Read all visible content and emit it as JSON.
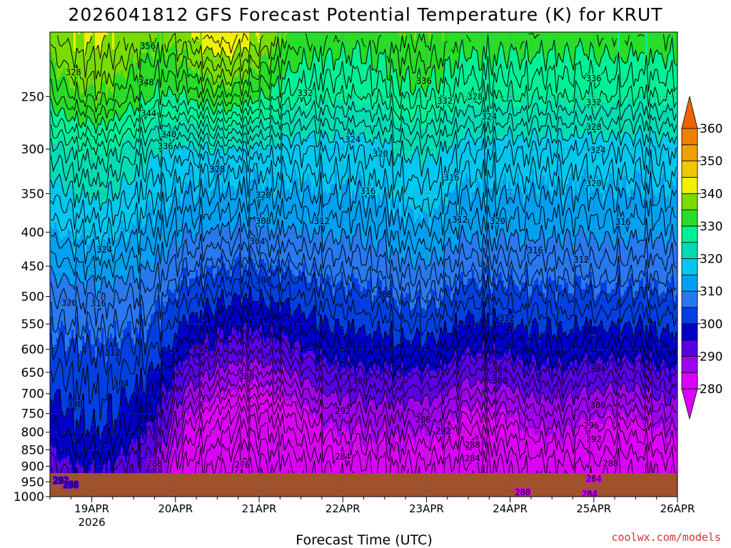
{
  "chart_data": {
    "type": "heatmap",
    "title": "2026041812 GFS Forecast Potential Temperature (K) for KRUT",
    "xlabel": "Forecast Time (UTC)",
    "ylabel": "",
    "credit": "coolwx.com/models",
    "x_ticks": [
      "19APR",
      "20APR",
      "21APR",
      "22APR",
      "23APR",
      "24APR",
      "25APR",
      "26APR"
    ],
    "x_year": "2026",
    "x_range_days": [
      18.5,
      26.0
    ],
    "y_ticks": [
      250,
      300,
      350,
      400,
      450,
      500,
      550,
      600,
      650,
      700,
      750,
      800,
      850,
      900,
      950,
      1000
    ],
    "y_range_hpa": [
      200,
      1000
    ],
    "colorbar": {
      "ticks": [
        360,
        350,
        340,
        330,
        320,
        310,
        300,
        290,
        280
      ],
      "bands": [
        {
          "lo": 280,
          "hi": 285,
          "color": "#dc00fa"
        },
        {
          "lo": 285,
          "hi": 290,
          "color": "#a000f0"
        },
        {
          "lo": 290,
          "hi": 295,
          "color": "#5a00e6"
        },
        {
          "lo": 295,
          "hi": 300,
          "color": "#0000c8"
        },
        {
          "lo": 300,
          "hi": 305,
          "color": "#0040e0"
        },
        {
          "lo": 305,
          "hi": 310,
          "color": "#2878f0"
        },
        {
          "lo": 310,
          "hi": 315,
          "color": "#00a0f0"
        },
        {
          "lo": 315,
          "hi": 320,
          "color": "#00c8f0"
        },
        {
          "lo": 320,
          "hi": 325,
          "color": "#00dcb4"
        },
        {
          "lo": 325,
          "hi": 330,
          "color": "#00f096"
        },
        {
          "lo": 330,
          "hi": 335,
          "color": "#28dc28"
        },
        {
          "lo": 335,
          "hi": 340,
          "color": "#78dc00"
        },
        {
          "lo": 340,
          "hi": 345,
          "color": "#f0f000"
        },
        {
          "lo": 345,
          "hi": 350,
          "color": "#f0c800"
        },
        {
          "lo": 350,
          "hi": 355,
          "color": "#f0a000"
        },
        {
          "lo": 355,
          "hi": 360,
          "color": "#f08000"
        }
      ],
      "under_color": "#dc00fa",
      "over_color": "#f06400"
    },
    "contour_interval_k": 2,
    "ground_color": "#a0522d",
    "contour_labels": [
      {
        "v": "356",
        "d": 19.67,
        "p": 210
      },
      {
        "v": "328",
        "d": 18.78,
        "p": 230
      },
      {
        "v": "348",
        "d": 19.65,
        "p": 238
      },
      {
        "v": "344",
        "d": 19.68,
        "p": 265
      },
      {
        "v": "340",
        "d": 19.92,
        "p": 285
      },
      {
        "v": "336",
        "d": 19.88,
        "p": 297
      },
      {
        "v": "332",
        "d": 21.55,
        "p": 247
      },
      {
        "v": "336",
        "d": 22.97,
        "p": 237
      },
      {
        "v": "332",
        "d": 23.22,
        "p": 254
      },
      {
        "v": "328",
        "d": 23.58,
        "p": 250
      },
      {
        "v": "324",
        "d": 23.75,
        "p": 268
      },
      {
        "v": "336",
        "d": 25.0,
        "p": 235
      },
      {
        "v": "332",
        "d": 25.0,
        "p": 255
      },
      {
        "v": "328",
        "d": 25.0,
        "p": 278
      },
      {
        "v": "324",
        "d": 25.05,
        "p": 301
      },
      {
        "v": "324",
        "d": 22.12,
        "p": 290
      },
      {
        "v": "320",
        "d": 22.45,
        "p": 305
      },
      {
        "v": "328",
        "d": 20.5,
        "p": 322
      },
      {
        "v": "316",
        "d": 22.3,
        "p": 347
      },
      {
        "v": "316",
        "d": 23.3,
        "p": 331
      },
      {
        "v": "320",
        "d": 21.05,
        "p": 352
      },
      {
        "v": "320",
        "d": 25.0,
        "p": 338
      },
      {
        "v": "308",
        "d": 21.05,
        "p": 385
      },
      {
        "v": "312",
        "d": 21.75,
        "p": 385
      },
      {
        "v": "312",
        "d": 23.4,
        "p": 383
      },
      {
        "v": "320",
        "d": 23.85,
        "p": 385
      },
      {
        "v": "316",
        "d": 25.35,
        "p": 386
      },
      {
        "v": "304",
        "d": 20.98,
        "p": 413
      },
      {
        "v": "324",
        "d": 19.15,
        "p": 425
      },
      {
        "v": "316",
        "d": 24.3,
        "p": 426
      },
      {
        "v": "312",
        "d": 24.85,
        "p": 440
      },
      {
        "v": "300",
        "d": 21.05,
        "p": 473
      },
      {
        "v": "308",
        "d": 22.5,
        "p": 497
      },
      {
        "v": "320",
        "d": 18.73,
        "p": 511
      },
      {
        "v": "316",
        "d": 19.08,
        "p": 512
      },
      {
        "v": "296",
        "d": 21.17,
        "p": 536
      },
      {
        "v": "312",
        "d": 23.96,
        "p": 539
      },
      {
        "v": "308",
        "d": 24.95,
        "p": 563
      },
      {
        "v": "312",
        "d": 19.25,
        "p": 607
      },
      {
        "v": "292",
        "d": 20.3,
        "p": 600
      },
      {
        "v": "308",
        "d": 24.2,
        "p": 604
      },
      {
        "v": "304",
        "d": 23.88,
        "p": 644
      },
      {
        "v": "304",
        "d": 25.05,
        "p": 643
      },
      {
        "v": "288",
        "d": 20.85,
        "p": 659
      },
      {
        "v": "300",
        "d": 22.21,
        "p": 669
      },
      {
        "v": "300",
        "d": 23.88,
        "p": 669
      },
      {
        "v": "304",
        "d": 19.35,
        "p": 676
      },
      {
        "v": "308",
        "d": 18.8,
        "p": 726
      },
      {
        "v": "292",
        "d": 22.0,
        "p": 743
      },
      {
        "v": "300",
        "d": 25.05,
        "p": 729
      },
      {
        "v": "284",
        "d": 19.65,
        "p": 764
      },
      {
        "v": "286",
        "d": 22.96,
        "p": 766
      },
      {
        "v": "296",
        "d": 24.97,
        "p": 782
      },
      {
        "v": "292",
        "d": 23.2,
        "p": 797
      },
      {
        "v": "292",
        "d": 25.0,
        "p": 820
      },
      {
        "v": "288",
        "d": 23.55,
        "p": 836
      },
      {
        "v": "284",
        "d": 22.0,
        "p": 871
      },
      {
        "v": "284",
        "d": 23.55,
        "p": 876
      },
      {
        "v": "288",
        "d": 25.2,
        "p": 891
      },
      {
        "v": "280",
        "d": 19.75,
        "p": 893
      },
      {
        "v": "276",
        "d": 20.8,
        "p": 896
      },
      {
        "v": "284",
        "d": 25.0,
        "p": 940
      },
      {
        "v": "292",
        "d": 18.63,
        "p": 946
      },
      {
        "v": "288",
        "d": 18.75,
        "p": 960
      },
      {
        "v": "280",
        "d": 24.15,
        "p": 985
      },
      {
        "v": "284",
        "d": 24.95,
        "p": 991
      }
    ]
  }
}
